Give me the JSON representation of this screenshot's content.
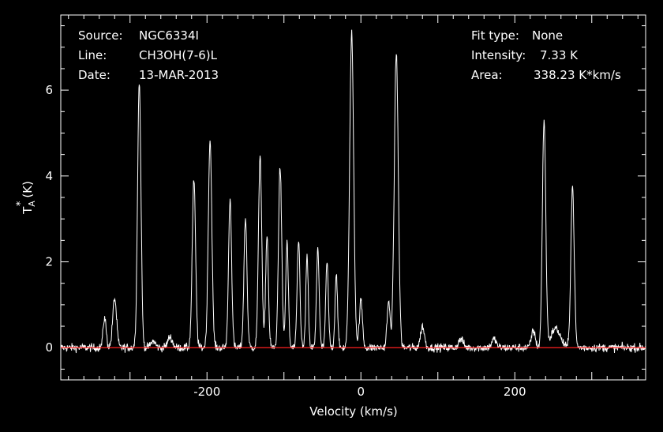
{
  "chart_data": {
    "type": "line",
    "xlabel": "Velocity (km/s)",
    "ylabel_main": "T",
    "ylabel_sub": "A",
    "ylabel_sup": "*",
    "ylabel_unit": "(K)",
    "xlim": [
      -390,
      370
    ],
    "ylim": [
      -0.75,
      7.75
    ],
    "xticks": [
      -200,
      0,
      200
    ],
    "xtick_labels": [
      "-200",
      "0",
      "200"
    ],
    "yticks": [
      0,
      2,
      4,
      6
    ],
    "ytick_labels": [
      "0",
      "2",
      "4",
      "6"
    ],
    "baseline": 0,
    "colors": {
      "background": "#000000",
      "spectrum": "#ffffff",
      "baseline": "#ff2020",
      "axes": "#ffffff"
    },
    "info_left": [
      {
        "label": "Source:",
        "value": "NGC6334I"
      },
      {
        "label": "Line:",
        "value": "CH3OH(7-6)L"
      },
      {
        "label": "Date:",
        "value": "13-MAR-2013"
      }
    ],
    "info_right": [
      {
        "label": "Fit type:",
        "value": "None"
      },
      {
        "label": "Intensity:",
        "value": "7.33 K"
      },
      {
        "label": "Area:",
        "value": "338.23 K*km/s"
      }
    ],
    "peaks": [
      {
        "x": -333,
        "y": 0.7,
        "w": 2.0
      },
      {
        "x": -320,
        "y": 1.15,
        "w": 2.5
      },
      {
        "x": -288,
        "y": 6.2,
        "w": 2.2
      },
      {
        "x": -270,
        "y": 0.15,
        "w": 3.0
      },
      {
        "x": -248,
        "y": 0.25,
        "w": 3.0
      },
      {
        "x": -217,
        "y": 3.9,
        "w": 2.2
      },
      {
        "x": -196,
        "y": 4.85,
        "w": 2.3
      },
      {
        "x": -170,
        "y": 3.45,
        "w": 2.0
      },
      {
        "x": -150,
        "y": 3.0,
        "w": 2.0
      },
      {
        "x": -131,
        "y": 4.5,
        "w": 2.1
      },
      {
        "x": -122,
        "y": 2.6,
        "w": 1.8
      },
      {
        "x": -105,
        "y": 4.2,
        "w": 2.1
      },
      {
        "x": -96,
        "y": 2.45,
        "w": 1.7
      },
      {
        "x": -81,
        "y": 2.5,
        "w": 1.8
      },
      {
        "x": -70,
        "y": 2.1,
        "w": 1.6
      },
      {
        "x": -56,
        "y": 2.35,
        "w": 1.7
      },
      {
        "x": -44,
        "y": 2.0,
        "w": 1.7
      },
      {
        "x": -32,
        "y": 1.75,
        "w": 1.6
      },
      {
        "x": -12,
        "y": 7.33,
        "w": 2.6
      },
      {
        "x": 0,
        "y": 1.1,
        "w": 2.0
      },
      {
        "x": 36,
        "y": 1.05,
        "w": 2.0
      },
      {
        "x": 46,
        "y": 6.85,
        "w": 2.6
      },
      {
        "x": 80,
        "y": 0.5,
        "w": 2.5
      },
      {
        "x": 130,
        "y": 0.2,
        "w": 3.0
      },
      {
        "x": 173,
        "y": 0.2,
        "w": 3.0
      },
      {
        "x": 224,
        "y": 0.4,
        "w": 2.5
      },
      {
        "x": 238,
        "y": 5.3,
        "w": 2.2
      },
      {
        "x": 253,
        "y": 0.45,
        "w": 6.0
      },
      {
        "x": 275,
        "y": 3.75,
        "w": 2.2
      }
    ]
  }
}
